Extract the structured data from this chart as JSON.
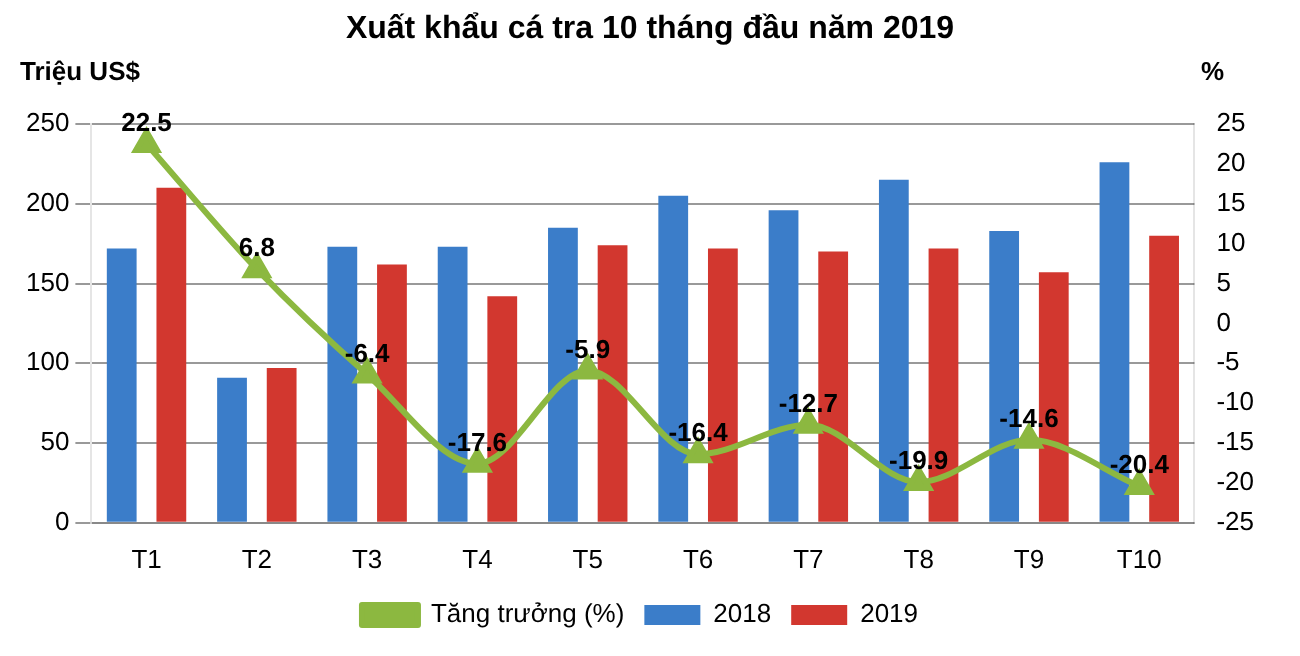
{
  "chart_data": {
    "type": "bar",
    "title": "Xuất khẩu cá tra 10 tháng đầu năm 2019",
    "ylabel": "Triệu US$",
    "y2label": "%",
    "categories": [
      "T1",
      "T2",
      "T3",
      "T4",
      "T5",
      "T6",
      "T7",
      "T8",
      "T9",
      "T10"
    ],
    "series": [
      {
        "name": "2018",
        "color": "#3b7dc9",
        "values": [
          172,
          91,
          173,
          173,
          185,
          205,
          196,
          215,
          183,
          226
        ]
      },
      {
        "name": "2019",
        "color": "#d2372f",
        "values": [
          210,
          97,
          162,
          142,
          174,
          172,
          170,
          172,
          157,
          180
        ]
      },
      {
        "name": "Tăng trưởng (%)",
        "type": "line",
        "axis": "y2",
        "color": "#8cb840",
        "marker": "triangle",
        "values": [
          22.5,
          6.8,
          -6.4,
          -17.6,
          -5.9,
          -16.4,
          -12.7,
          -19.9,
          -14.6,
          -20.4
        ],
        "value_labels": [
          "22.5",
          "6.8",
          "-6.4",
          "-17.6",
          "-5.9",
          "-16.4",
          "-12.7",
          "-19.9",
          "-14.6",
          "-20.4"
        ]
      }
    ],
    "ylim": [
      0,
      250
    ],
    "yticks": [
      0,
      50,
      100,
      150,
      200,
      250
    ],
    "y2lim": [
      -25,
      25
    ],
    "y2ticks": [
      -25,
      -20,
      -15,
      -10,
      -5,
      0,
      5,
      10,
      15,
      20,
      25
    ],
    "grid": "y",
    "legend": "bottom"
  }
}
